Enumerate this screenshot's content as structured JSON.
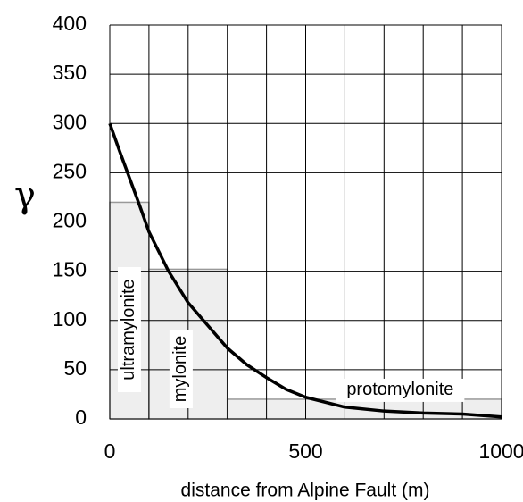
{
  "chart_data": {
    "type": "line",
    "y_label": "γ",
    "x_label": "distance from Alpine Fault (m)",
    "xlim": [
      0,
      1000
    ],
    "xticks": [
      0,
      500,
      1000
    ],
    "xgrid": [
      0,
      100,
      200,
      300,
      400,
      500,
      600,
      700,
      800,
      900,
      1000
    ],
    "ylim": [
      0,
      400
    ],
    "yticks": [
      0,
      50,
      100,
      150,
      200,
      250,
      300,
      350,
      400
    ],
    "grid": true,
    "bars": [
      {
        "label": "ultramylonite",
        "x0": 0,
        "x1": 100,
        "value": 220
      },
      {
        "label": "mylonite",
        "x0": 100,
        "x1": 300,
        "value": 152
      },
      {
        "label": "protomylonite",
        "x0": 300,
        "x1": 1000,
        "value": 20
      }
    ],
    "bar_color": "#eeeeee",
    "series": [
      {
        "color": "#000000",
        "x": [
          0,
          25,
          50,
          75,
          100,
          150,
          200,
          250,
          300,
          350,
          400,
          450,
          500,
          600,
          700,
          800,
          900,
          1000
        ],
        "values": [
          300,
          272,
          245,
          218,
          190,
          150,
          118,
          95,
          72,
          55,
          42,
          30,
          22,
          12,
          8,
          6,
          5,
          2
        ]
      }
    ]
  }
}
